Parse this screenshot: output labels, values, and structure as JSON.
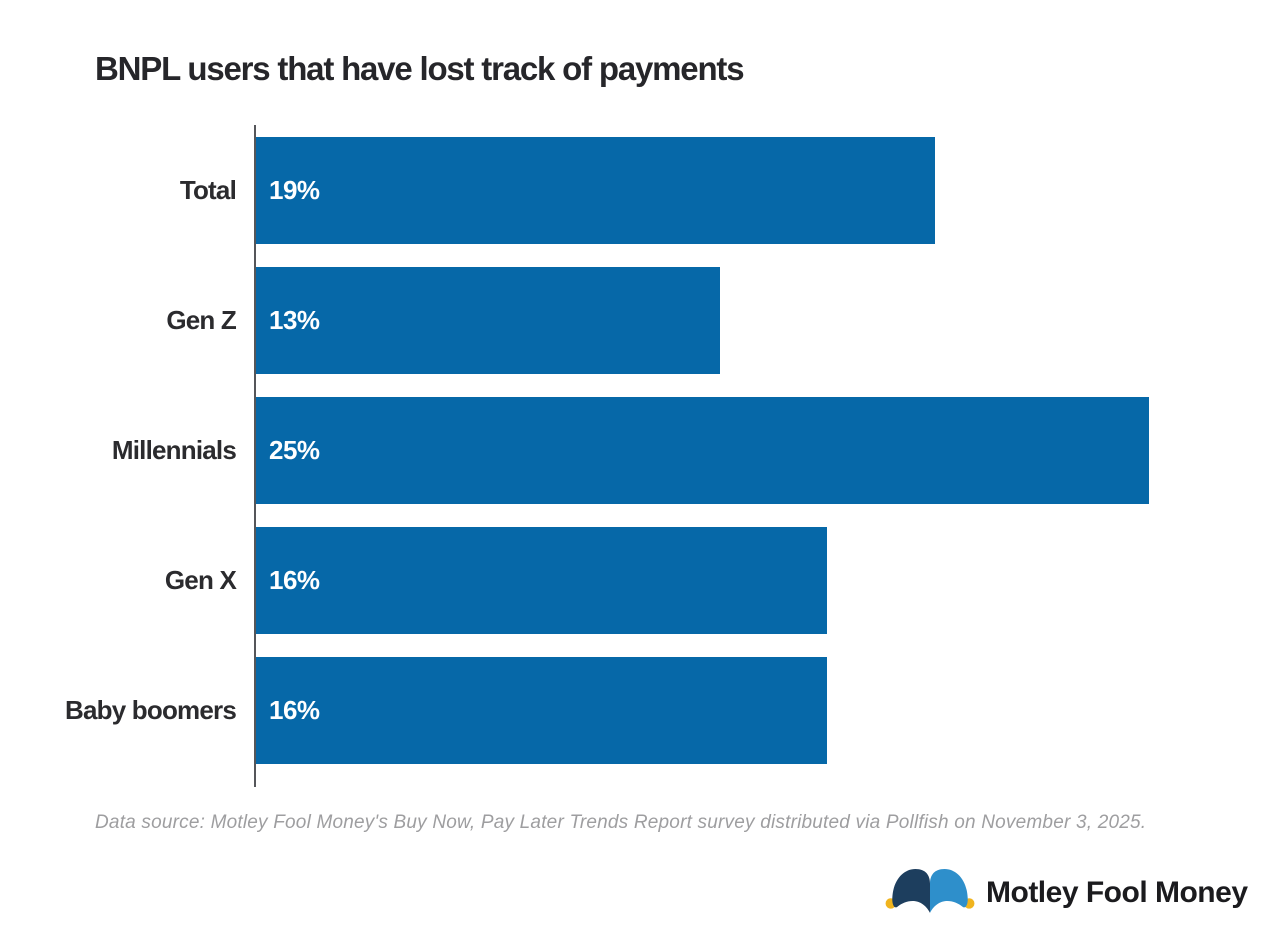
{
  "chart_data": {
    "type": "bar",
    "orientation": "horizontal",
    "title": "BNPL users that have lost track of payments",
    "categories": [
      "Total",
      "Gen Z",
      "Millennials",
      "Gen X",
      "Baby boomers"
    ],
    "values": [
      19,
      13,
      25,
      16,
      16
    ],
    "data_labels": [
      "19%",
      "13%",
      "25%",
      "16%",
      "16%"
    ],
    "xlabel": "",
    "ylabel": "",
    "xlim": [
      0,
      25.2
    ],
    "grid": false,
    "legend": false,
    "bar_color": "#0668a8",
    "data_label_color": "#ffffff",
    "axis_line_color": "#55565a"
  },
  "footer": {
    "source_note": "Data source: Motley Fool Money's Buy Now, Pay Later Trends Report survey distributed via Pollfish on November 3, 2025.",
    "brand": "Motley Fool Money"
  },
  "logo_colors": {
    "hat_left": "#1d3e5e",
    "hat_right": "#2e8fcb",
    "bell": "#f0b41e"
  }
}
